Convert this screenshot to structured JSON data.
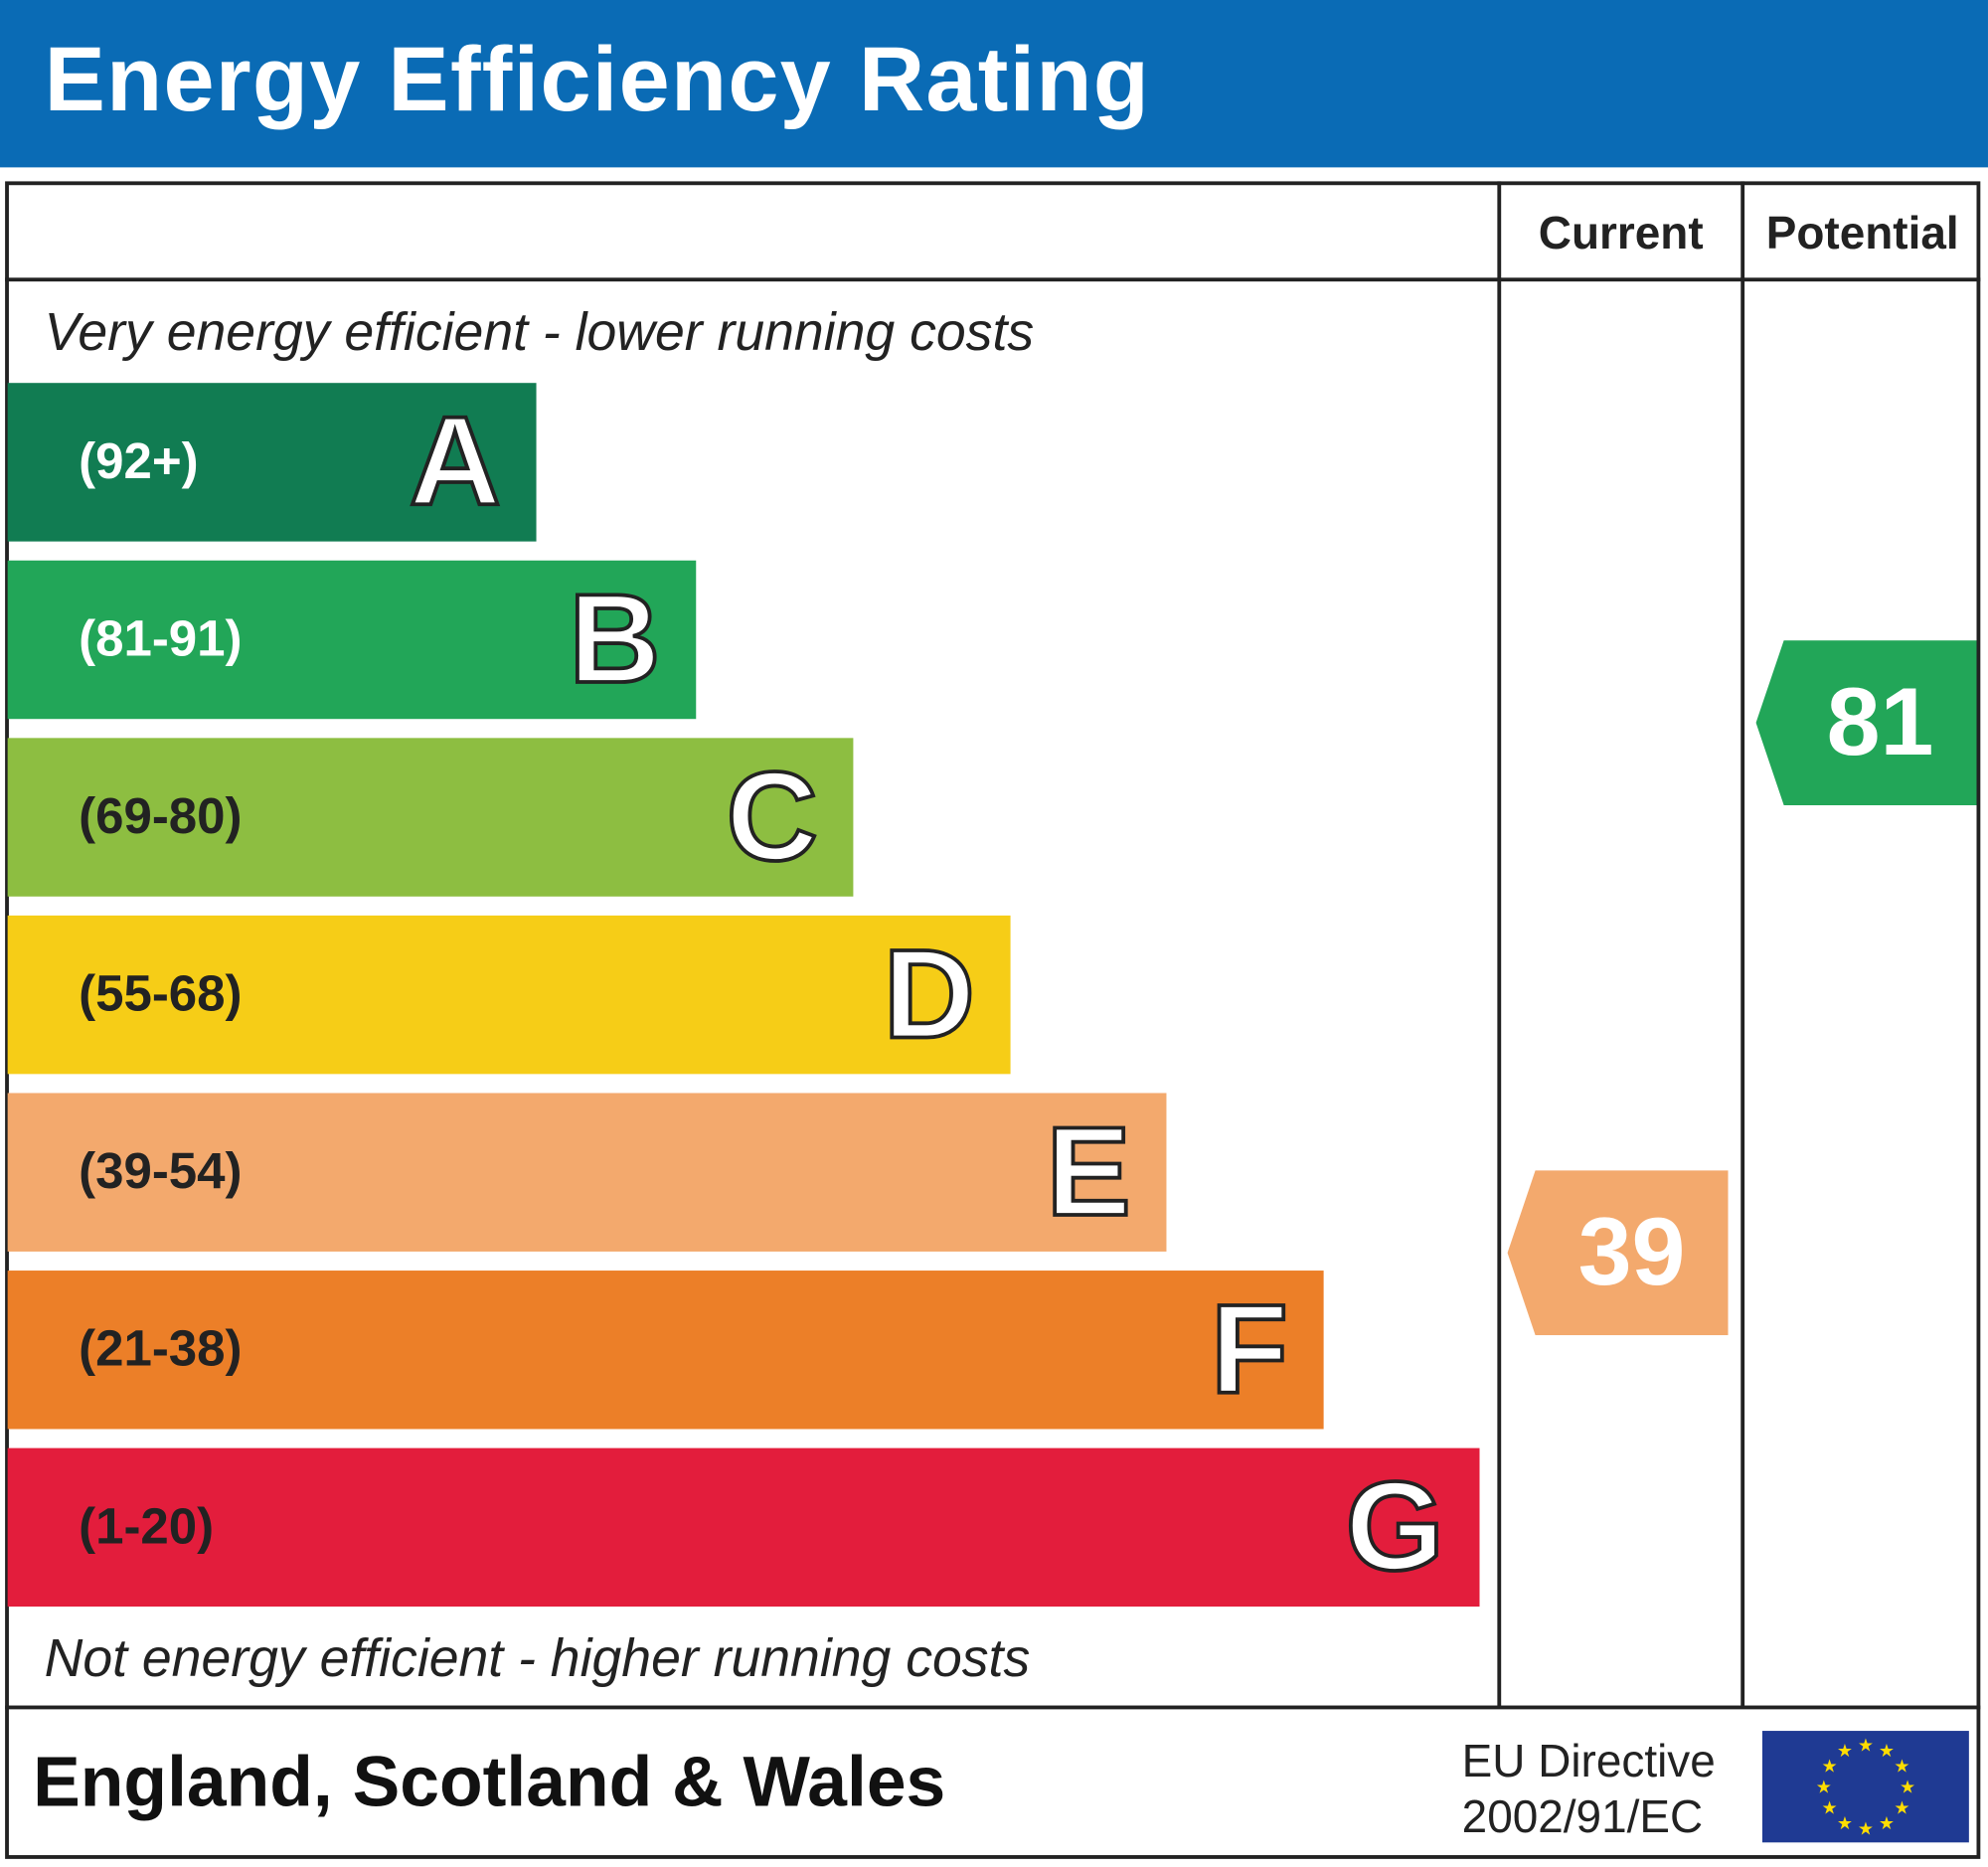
{
  "title": "Energy Efficiency Rating",
  "columns": {
    "current": "Current",
    "potential": "Potential"
  },
  "top_note": "Very energy efficient - lower running costs",
  "bottom_note": "Not energy efficient - higher running costs",
  "bands": [
    {
      "letter": "A",
      "range": "(92+)",
      "color": "#117c52",
      "text_color": "#ffffff"
    },
    {
      "letter": "B",
      "range": "(81-91)",
      "color": "#22a658",
      "text_color": "#ffffff"
    },
    {
      "letter": "C",
      "range": "(69-80)",
      "color": "#8dbe41",
      "text_color": "#222222"
    },
    {
      "letter": "D",
      "range": "(55-68)",
      "color": "#f6cd17",
      "text_color": "#222222"
    },
    {
      "letter": "E",
      "range": "(39-54)",
      "color": "#f3a96d",
      "text_color": "#222222"
    },
    {
      "letter": "F",
      "range": "(21-38)",
      "color": "#ec7f28",
      "text_color": "#222222"
    },
    {
      "letter": "G",
      "range": "(1-20)",
      "color": "#e31d3c",
      "text_color": "#222222"
    }
  ],
  "current": {
    "value": "39",
    "band": "E",
    "color": "#f3a96d"
  },
  "potential": {
    "value": "81",
    "band": "B",
    "color": "#22a658"
  },
  "footer": {
    "region": "England, Scotland & Wales",
    "directive_line1": "EU Directive",
    "directive_line2": "2002/91/EC",
    "flag_icon": "eu-flag-icon"
  },
  "header_color": "#0a6bb5"
}
